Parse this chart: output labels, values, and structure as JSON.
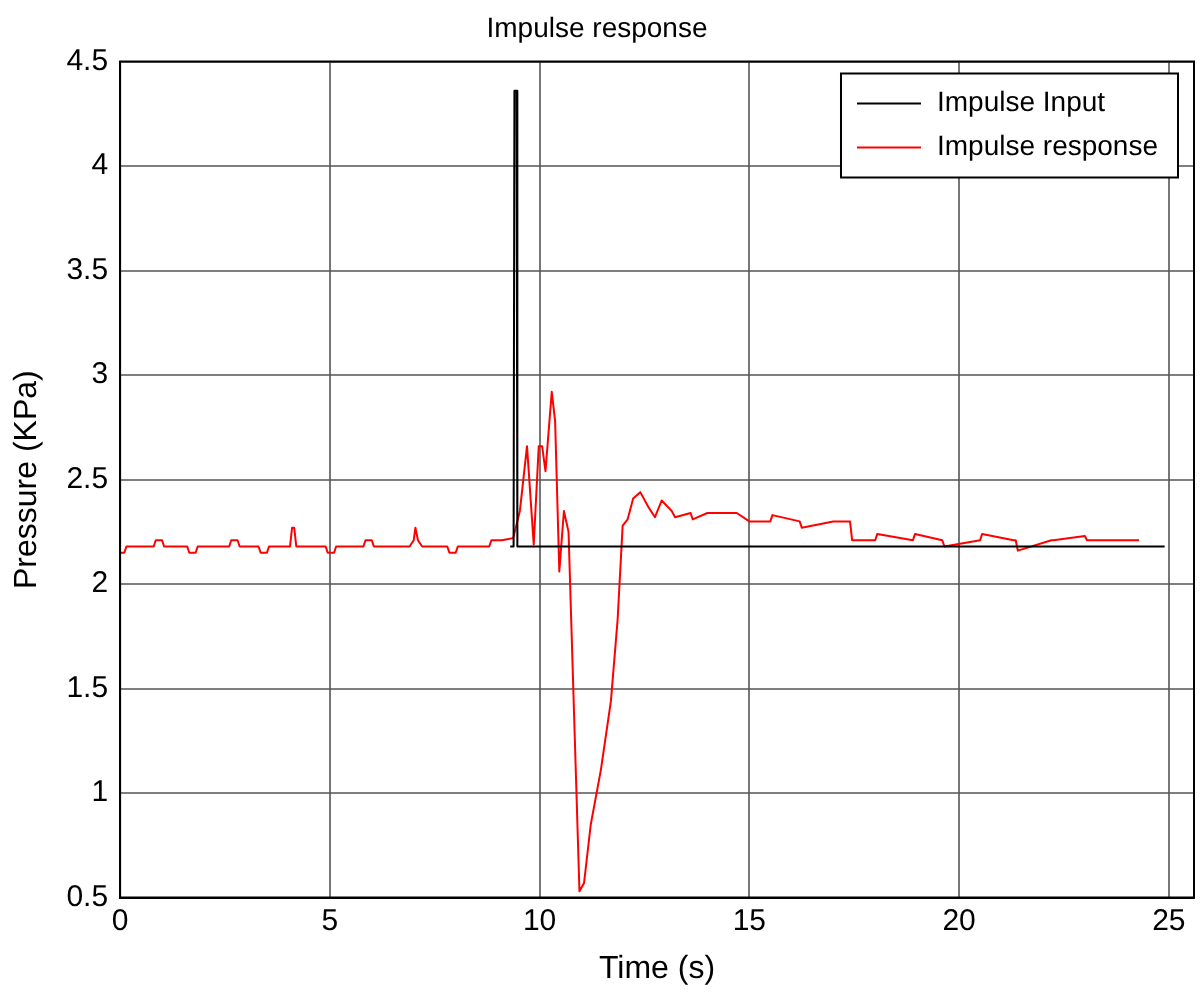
{
  "chart_data": {
    "type": "line",
    "title": "Impulse response",
    "xlabel": "Time (s)",
    "ylabel": "Pressure (KPa)",
    "xlim": [
      0,
      25.6
    ],
    "xticks": [
      0,
      5,
      10,
      15,
      20,
      25
    ],
    "ylim": [
      0.5,
      4.5
    ],
    "yticks": [
      0.5,
      1,
      1.5,
      2,
      2.5,
      3,
      3.5,
      4,
      4.5
    ],
    "grid": true,
    "legend": "top right",
    "marker": "none",
    "line_style": "solid",
    "series": [
      {
        "name": "Impulse Input",
        "color": "#000000",
        "x": [
          9.3,
          9.38,
          9.4,
          9.45,
          9.47,
          24.9
        ],
        "values": [
          2.18,
          2.18,
          4.36,
          4.36,
          2.18,
          2.18
        ]
      },
      {
        "name": "Impulse response",
        "color": "#ff0000",
        "x": [
          0,
          0.1,
          0.15,
          0.8,
          0.85,
          1.0,
          1.05,
          1.6,
          1.65,
          1.8,
          1.85,
          2.6,
          2.65,
          2.8,
          2.85,
          3.3,
          3.35,
          3.5,
          3.55,
          4.05,
          4.1,
          4.15,
          4.2,
          4.9,
          4.95,
          5.1,
          5.15,
          5.8,
          5.85,
          6.0,
          6.05,
          6.9,
          7.0,
          7.04,
          7.1,
          7.2,
          7.8,
          7.85,
          8.0,
          8.05,
          8.8,
          8.85,
          9.1,
          9.37,
          9.53,
          9.7,
          9.86,
          9.98,
          10.06,
          10.14,
          10.29,
          10.37,
          10.47,
          10.58,
          10.69,
          10.95,
          11.06,
          11.22,
          11.46,
          11.7,
          11.86,
          11.98,
          12.1,
          12.23,
          12.4,
          12.59,
          12.75,
          12.91,
          13.15,
          13.23,
          13.6,
          13.65,
          14.0,
          14.7,
          15.0,
          15.5,
          15.55,
          16.2,
          16.25,
          17.0,
          17.4,
          17.45,
          18.0,
          18.05,
          18.9,
          18.95,
          19.6,
          19.65,
          20.5,
          20.55,
          21.3,
          21.35,
          21.4,
          22.2,
          22.25,
          23.0,
          23.05,
          24.29
        ],
        "values": [
          2.15,
          2.15,
          2.18,
          2.18,
          2.21,
          2.21,
          2.18,
          2.18,
          2.15,
          2.15,
          2.18,
          2.18,
          2.21,
          2.21,
          2.18,
          2.18,
          2.15,
          2.15,
          2.18,
          2.18,
          2.27,
          2.27,
          2.18,
          2.18,
          2.15,
          2.15,
          2.18,
          2.18,
          2.21,
          2.21,
          2.18,
          2.18,
          2.21,
          2.27,
          2.21,
          2.18,
          2.18,
          2.15,
          2.15,
          2.18,
          2.18,
          2.21,
          2.21,
          2.22,
          2.35,
          2.66,
          2.19,
          2.66,
          2.66,
          2.54,
          2.92,
          2.78,
          2.06,
          2.35,
          2.25,
          0.53,
          0.57,
          0.85,
          1.11,
          1.44,
          1.83,
          2.28,
          2.31,
          2.41,
          2.44,
          2.37,
          2.32,
          2.4,
          2.35,
          2.32,
          2.34,
          2.31,
          2.34,
          2.34,
          2.3,
          2.3,
          2.33,
          2.3,
          2.27,
          2.3,
          2.3,
          2.21,
          2.21,
          2.24,
          2.21,
          2.24,
          2.21,
          2.18,
          2.21,
          2.24,
          2.21,
          2.21,
          2.16,
          2.21,
          2.21,
          2.23,
          2.21,
          2.21
        ]
      }
    ]
  }
}
